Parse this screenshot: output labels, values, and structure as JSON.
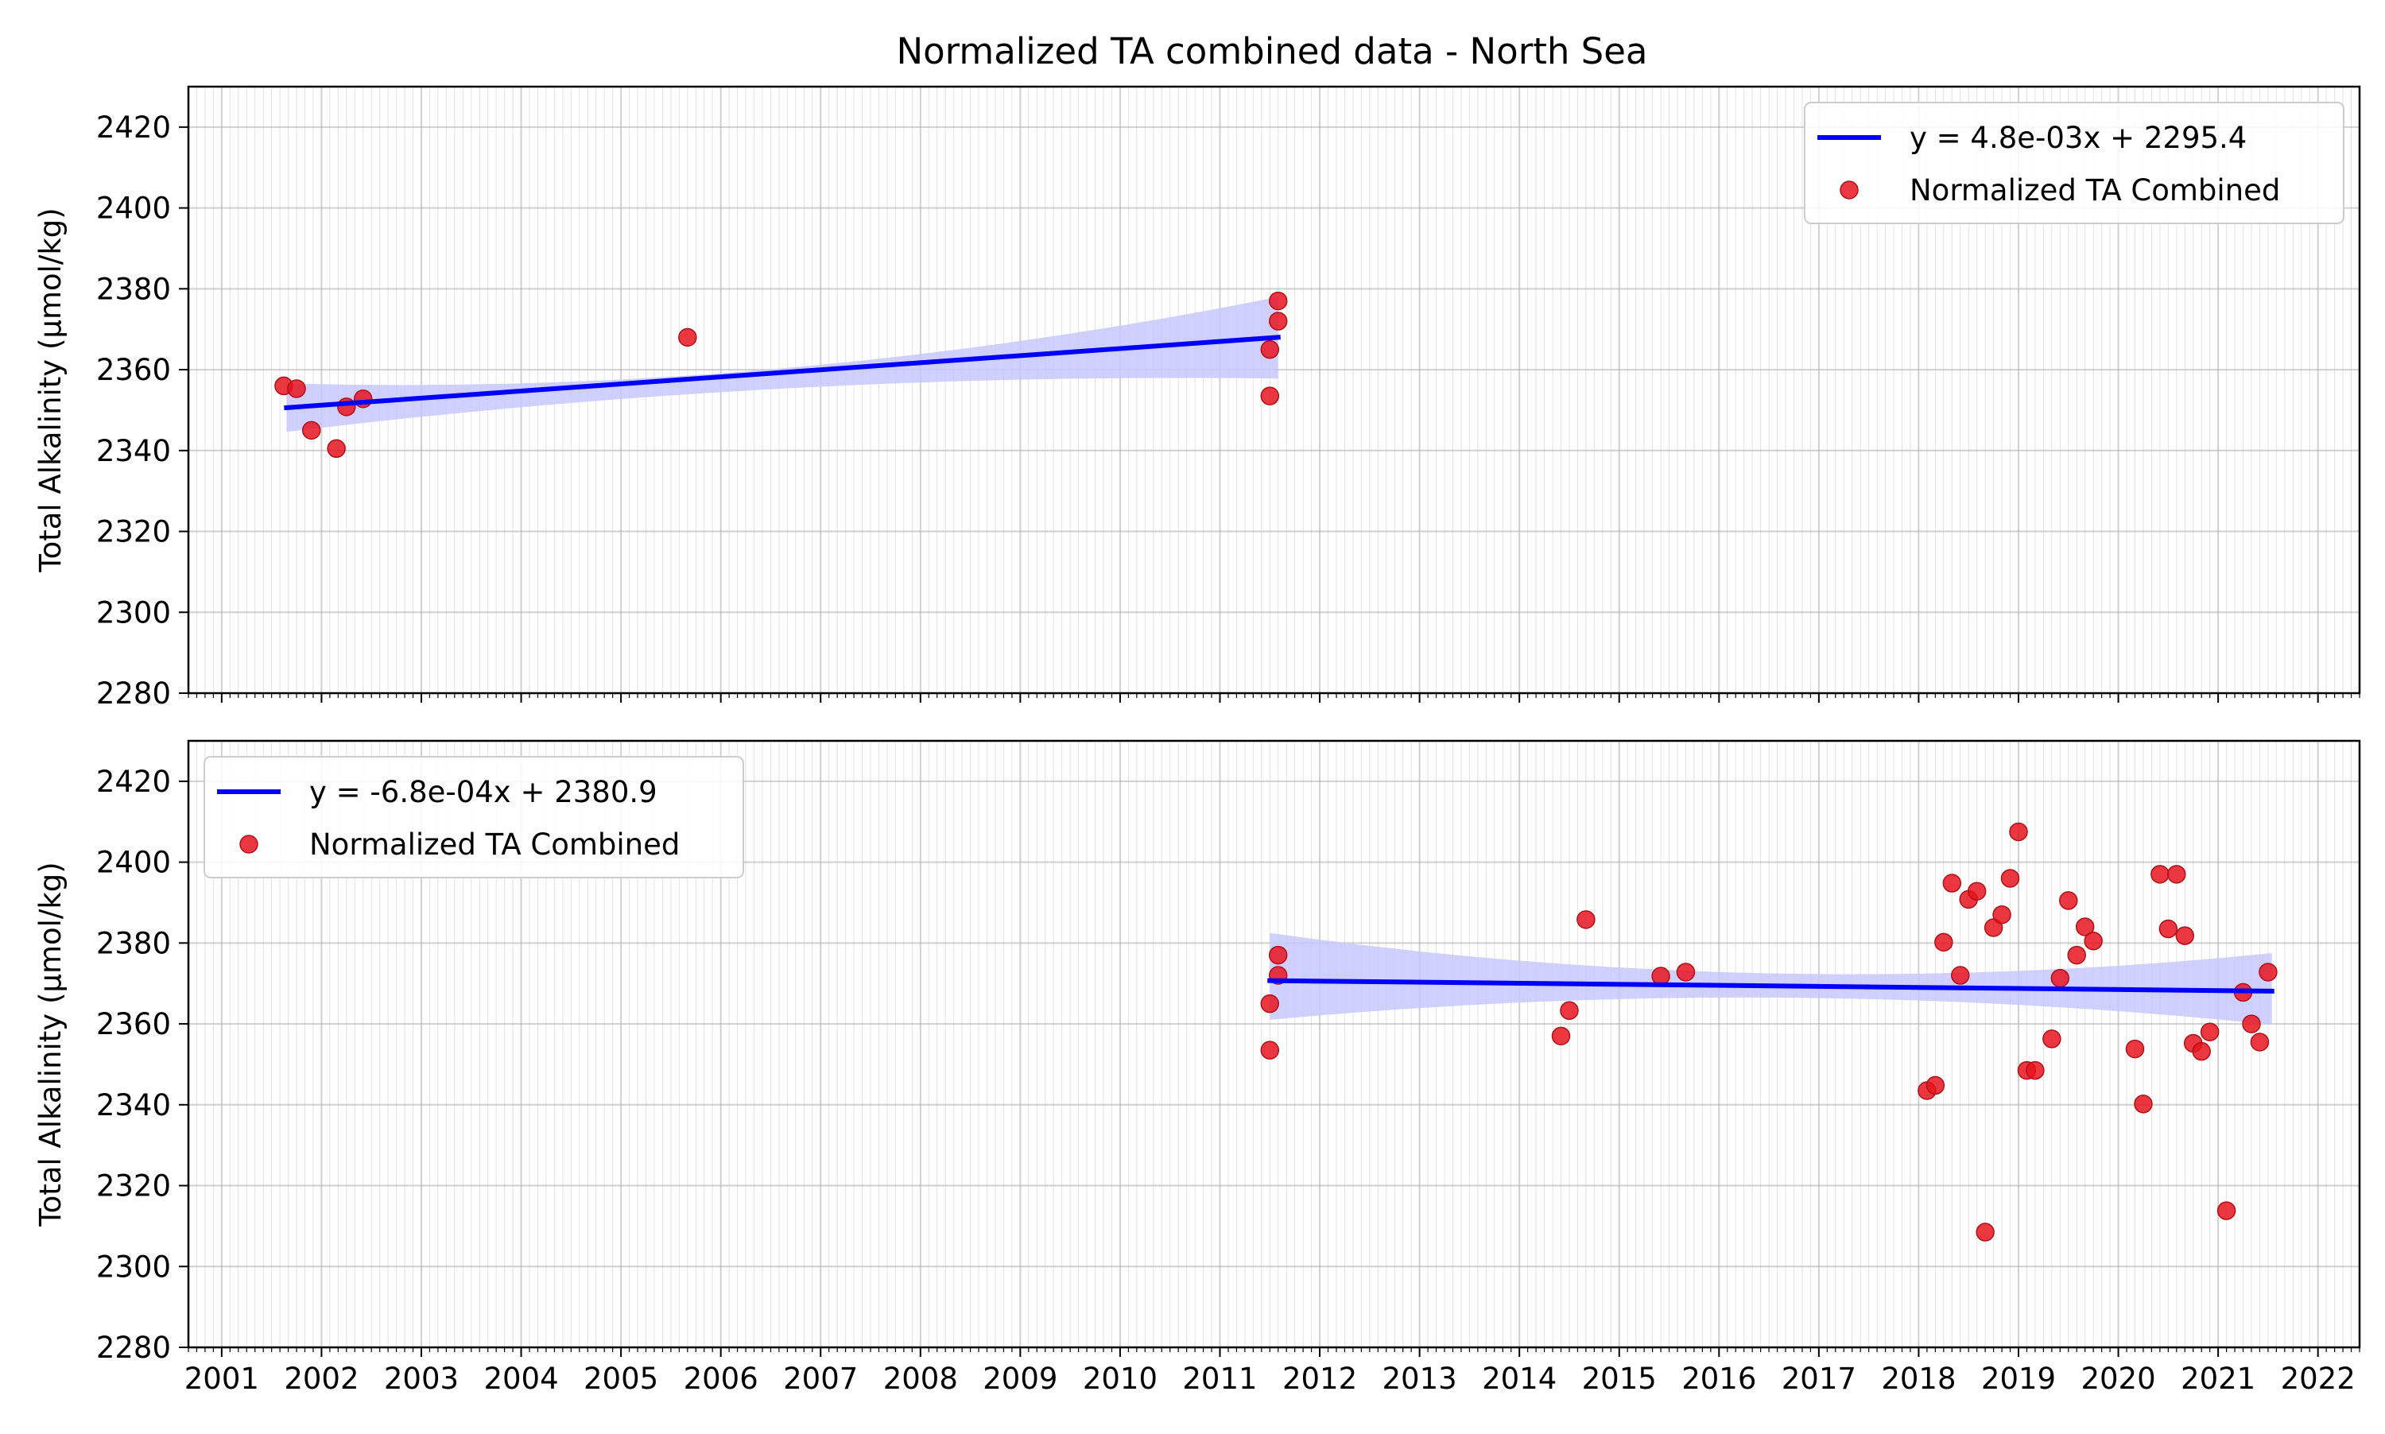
{
  "title": "Normalized TA combined data - North Sea",
  "colors": {
    "line": "#0000ff",
    "band": "#c8c8ff",
    "marker": "#e8141e",
    "marker_edge": "#b01018",
    "grid": "#b0b0b0"
  },
  "chart_data": [
    {
      "type": "scatter",
      "ylabel": "Total Alkalinity (µmol/kg)",
      "xlabel": "",
      "ylim": [
        2280,
        2430
      ],
      "xlim": [
        "2000-09",
        "2022-06"
      ],
      "yticks": [
        2280,
        2300,
        2320,
        2340,
        2360,
        2380,
        2400,
        2420
      ],
      "xticks": [
        "2001",
        "2002",
        "2003",
        "2004",
        "2005",
        "2006",
        "2007",
        "2008",
        "2009",
        "2010",
        "2011",
        "2012",
        "2013",
        "2014",
        "2015",
        "2016",
        "2017",
        "2018",
        "2019",
        "2020",
        "2021",
        "2022"
      ],
      "show_xtick_labels": false,
      "grid": true,
      "legend_position": "top-right",
      "fit": {
        "label": "y = 4.8e-03x + 2295.4",
        "x": [
          "2001-08-25",
          "2011-08-01"
        ],
        "y": [
          2350.6,
          2368.0
        ],
        "ci_lower": [
          2344.6,
          2357.8
        ],
        "ci_upper": [
          2356.6,
          2378.0
        ],
        "ci_mid": {
          "x": "2006-08-01",
          "lower": 2355.3,
          "upper": 2360.3
        }
      },
      "series": [
        {
          "name": "Normalized TA Combined",
          "points": [
            [
              "2001-08-15",
              2356.0
            ],
            [
              "2001-10-01",
              2355.3
            ],
            [
              "2001-11-25",
              2345.0
            ],
            [
              "2002-02-25",
              2340.5
            ],
            [
              "2002-04-01",
              2350.8
            ],
            [
              "2002-06-01",
              2352.8
            ],
            [
              "2005-09-01",
              2368.0
            ],
            [
              "2011-07-01",
              2353.5
            ],
            [
              "2011-07-01",
              2365.0
            ],
            [
              "2011-08-01",
              2377.0
            ],
            [
              "2011-08-01",
              2372.0
            ]
          ]
        }
      ]
    },
    {
      "type": "scatter",
      "ylabel": "Total Alkalinity (µmol/kg)",
      "xlabel": "",
      "ylim": [
        2280,
        2430
      ],
      "xlim": [
        "2000-09",
        "2022-06"
      ],
      "yticks": [
        2280,
        2300,
        2320,
        2340,
        2360,
        2380,
        2400,
        2420
      ],
      "xticks": [
        "2001",
        "2002",
        "2003",
        "2004",
        "2005",
        "2006",
        "2007",
        "2008",
        "2009",
        "2010",
        "2011",
        "2012",
        "2013",
        "2014",
        "2015",
        "2016",
        "2017",
        "2018",
        "2019",
        "2020",
        "2021",
        "2022"
      ],
      "show_xtick_labels": true,
      "grid": true,
      "legend_position": "top-left",
      "fit": {
        "label": "y = -6.8e-04x + 2380.9",
        "x": [
          "2011-07-01",
          "2021-07-15"
        ],
        "y": [
          2370.7,
          2368.1
        ],
        "ci_lower": [
          2361.0,
          2359.8
        ],
        "ci_upper": [
          2382.5,
          2377.5
        ],
        "ci_mid": {
          "x": "2016-07-01",
          "lower": 2366.5,
          "upper": 2372.5
        }
      },
      "series": [
        {
          "name": "Normalized TA Combined",
          "points": [
            [
              "2011-07-01",
              2353.5
            ],
            [
              "2011-07-01",
              2365.0
            ],
            [
              "2011-08-01",
              2377.0
            ],
            [
              "2011-08-01",
              2372.0
            ],
            [
              "2014-06-01",
              2357.0
            ],
            [
              "2014-07-01",
              2363.3
            ],
            [
              "2014-09-01",
              2385.8
            ],
            [
              "2015-06-01",
              2371.8
            ],
            [
              "2015-09-01",
              2372.8
            ],
            [
              "2018-02-01",
              2343.5
            ],
            [
              "2018-03-01",
              2344.8
            ],
            [
              "2018-04-01",
              2380.2
            ],
            [
              "2018-05-01",
              2394.8
            ],
            [
              "2018-06-01",
              2372.0
            ],
            [
              "2018-07-01",
              2390.8
            ],
            [
              "2018-08-01",
              2392.8
            ],
            [
              "2018-09-01",
              2308.5
            ],
            [
              "2018-10-01",
              2383.8
            ],
            [
              "2018-11-01",
              2387.0
            ],
            [
              "2018-12-01",
              2396.0
            ],
            [
              "2019-01-01",
              2407.5
            ],
            [
              "2019-02-01",
              2348.5
            ],
            [
              "2019-03-01",
              2348.5
            ],
            [
              "2019-05-01",
              2356.3
            ],
            [
              "2019-06-01",
              2371.3
            ],
            [
              "2019-07-01",
              2390.5
            ],
            [
              "2019-08-01",
              2377.0
            ],
            [
              "2019-09-01",
              2384.0
            ],
            [
              "2019-10-01",
              2380.5
            ],
            [
              "2020-03-01",
              2353.8
            ],
            [
              "2020-04-01",
              2340.2
            ],
            [
              "2020-06-01",
              2397.0
            ],
            [
              "2020-07-01",
              2383.5
            ],
            [
              "2020-08-01",
              2397.0
            ],
            [
              "2020-09-01",
              2381.8
            ],
            [
              "2020-10-01",
              2355.2
            ],
            [
              "2020-11-01",
              2353.2
            ],
            [
              "2020-12-01",
              2358.0
            ],
            [
              "2021-02-01",
              2313.8
            ],
            [
              "2021-04-01",
              2367.8
            ],
            [
              "2021-05-01",
              2360.0
            ],
            [
              "2021-06-01",
              2355.5
            ],
            [
              "2021-07-01",
              2372.8
            ]
          ]
        }
      ]
    }
  ]
}
